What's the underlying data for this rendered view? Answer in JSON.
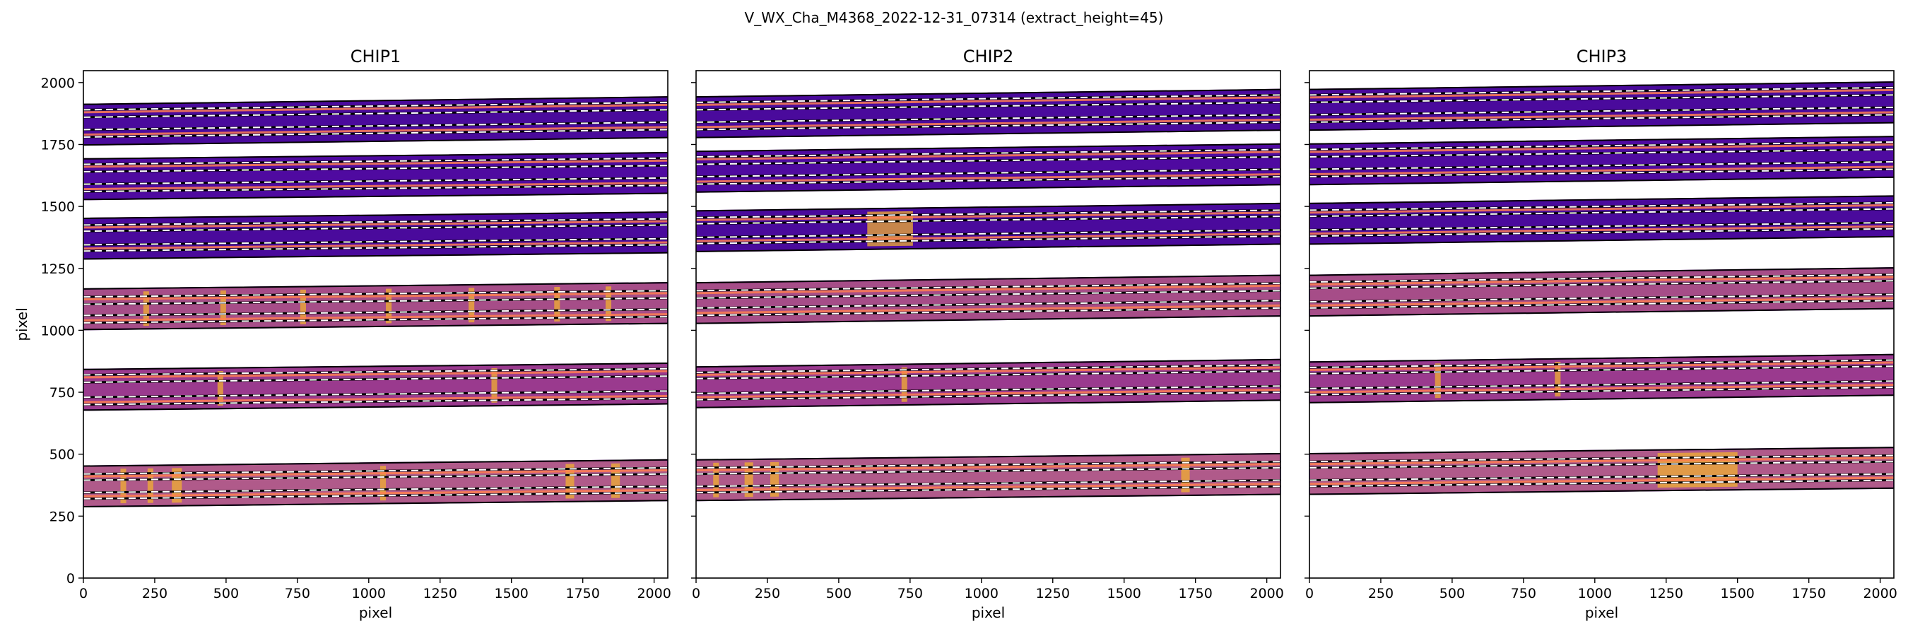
{
  "figure": {
    "suptitle": "V_WX_Cha_M4368_2022-12-31_07314  (extract_height=45)"
  },
  "chart_data": [
    {
      "type": "heatmap",
      "title": "CHIP1",
      "xlabel": "pixel",
      "ylabel": "pixel",
      "xlim": [
        0,
        2048
      ],
      "ylim": [
        0,
        2048
      ],
      "xticks": [
        0,
        250,
        500,
        750,
        1000,
        1250,
        1500,
        1750,
        2000
      ],
      "yticks": [
        0,
        250,
        500,
        750,
        1000,
        1250,
        1500,
        1750,
        2000
      ],
      "orders": [
        {
          "y_left": 370,
          "y_right": 395,
          "half_width": 82,
          "fill": "#b05a8a",
          "lines": [
            320,
            345,
            395,
            420
          ],
          "bright": [
            [
              130,
              150
            ],
            [
              225,
              245
            ],
            [
              310,
              345
            ],
            [
              1040,
              1060
            ],
            [
              1690,
              1720
            ],
            [
              1850,
              1880
            ]
          ]
        },
        {
          "y_left": 760,
          "y_right": 785,
          "half_width": 82,
          "fill": "#9a3a8e",
          "lines": [
            700,
            730,
            790,
            820
          ],
          "bright": [
            [
              470,
              490
            ],
            [
              1430,
              1450
            ]
          ]
        },
        {
          "y_left": 1085,
          "y_right": 1110,
          "half_width": 82,
          "fill": "#a64d88",
          "lines": [
            1030,
            1060,
            1105,
            1135
          ],
          "bright": [
            [
              210,
              230
            ],
            [
              480,
              500
            ],
            [
              760,
              780
            ],
            [
              1060,
              1080
            ],
            [
              1350,
              1370
            ],
            [
              1650,
              1670
            ],
            [
              1830,
              1850
            ]
          ]
        },
        {
          "y_left": 1370,
          "y_right": 1395,
          "half_width": 82,
          "fill": "#4a0a9c",
          "lines": [
            1320,
            1345,
            1400,
            1425
          ],
          "bright": []
        },
        {
          "y_left": 1610,
          "y_right": 1635,
          "half_width": 82,
          "fill": "#4f0aa0",
          "lines": [
            1560,
            1590,
            1640,
            1670
          ],
          "bright": []
        },
        {
          "y_left": 1830,
          "y_right": 1860,
          "half_width": 82,
          "fill": "#4a0a9c",
          "lines": [
            1780,
            1810,
            1860,
            1890
          ],
          "bright": []
        }
      ]
    },
    {
      "type": "heatmap",
      "title": "CHIP2",
      "xlabel": "pixel",
      "ylabel": "",
      "xlim": [
        0,
        2048
      ],
      "ylim": [
        0,
        2048
      ],
      "xticks": [
        0,
        250,
        500,
        750,
        1000,
        1250,
        1500,
        1750,
        2000
      ],
      "yticks": [
        0,
        250,
        500,
        750,
        1000,
        1250,
        1500,
        1750,
        2000
      ],
      "orders": [
        {
          "y_left": 395,
          "y_right": 420,
          "half_width": 82,
          "fill": "#b05a8a",
          "lines": [
            345,
            370,
            420,
            445
          ],
          "bright": [
            [
              60,
              80
            ],
            [
              170,
              200
            ],
            [
              260,
              290
            ],
            [
              1700,
              1730
            ]
          ]
        },
        {
          "y_left": 770,
          "y_right": 800,
          "half_width": 82,
          "fill": "#9a3a8e",
          "lines": [
            720,
            745,
            805,
            830
          ],
          "bright": [
            [
              720,
              740
            ]
          ]
        },
        {
          "y_left": 1110,
          "y_right": 1140,
          "half_width": 82,
          "fill": "#a64d88",
          "lines": [
            1060,
            1090,
            1130,
            1160
          ],
          "bright": []
        },
        {
          "y_left": 1400,
          "y_right": 1430,
          "half_width": 82,
          "fill": "#4a0a9c",
          "lines": [
            1350,
            1375,
            1430,
            1455
          ],
          "bright": [
            [
              600,
              760
            ]
          ]
        },
        {
          "y_left": 1640,
          "y_right": 1670,
          "half_width": 82,
          "fill": "#4f0aa0",
          "lines": [
            1590,
            1620,
            1670,
            1700
          ],
          "bright": []
        },
        {
          "y_left": 1860,
          "y_right": 1890,
          "half_width": 82,
          "fill": "#4a0a9c",
          "lines": [
            1810,
            1840,
            1890,
            1920
          ],
          "bright": []
        }
      ]
    },
    {
      "type": "heatmap",
      "title": "CHIP3",
      "xlabel": "pixel",
      "ylabel": "",
      "xlim": [
        0,
        2048
      ],
      "ylim": [
        0,
        2048
      ],
      "xticks": [
        0,
        250,
        500,
        750,
        1000,
        1250,
        1500,
        1750,
        2000
      ],
      "yticks": [
        0,
        250,
        500,
        750,
        1000,
        1250,
        1500,
        1750,
        2000
      ],
      "orders": [
        {
          "y_left": 420,
          "y_right": 445,
          "half_width": 82,
          "fill": "#b05a8a",
          "lines": [
            370,
            395,
            445,
            470
          ],
          "bright": [
            [
              1220,
              1500
            ]
          ]
        },
        {
          "y_left": 790,
          "y_right": 820,
          "half_width": 82,
          "fill": "#9a3a8e",
          "lines": [
            740,
            765,
            825,
            850
          ],
          "bright": [
            [
              440,
              460
            ],
            [
              860,
              880
            ]
          ]
        },
        {
          "y_left": 1140,
          "y_right": 1170,
          "half_width": 82,
          "fill": "#a64d88",
          "lines": [
            1090,
            1115,
            1170,
            1195
          ],
          "bright": []
        },
        {
          "y_left": 1430,
          "y_right": 1460,
          "half_width": 82,
          "fill": "#4a0a9c",
          "lines": [
            1380,
            1405,
            1460,
            1485
          ],
          "bright": []
        },
        {
          "y_left": 1670,
          "y_right": 1700,
          "half_width": 82,
          "fill": "#4f0aa0",
          "lines": [
            1620,
            1650,
            1700,
            1730
          ],
          "bright": []
        },
        {
          "y_left": 1890,
          "y_right": 1920,
          "half_width": 82,
          "fill": "#4a0a9c",
          "lines": [
            1840,
            1870,
            1920,
            1950
          ],
          "bright": []
        }
      ]
    }
  ],
  "colors": {
    "order_edge": "#7a0aa8",
    "trace_line": "#ff7f50",
    "extract_line": "#ffffff",
    "bright_feature": "#f2b030",
    "border_line": "#000000"
  }
}
